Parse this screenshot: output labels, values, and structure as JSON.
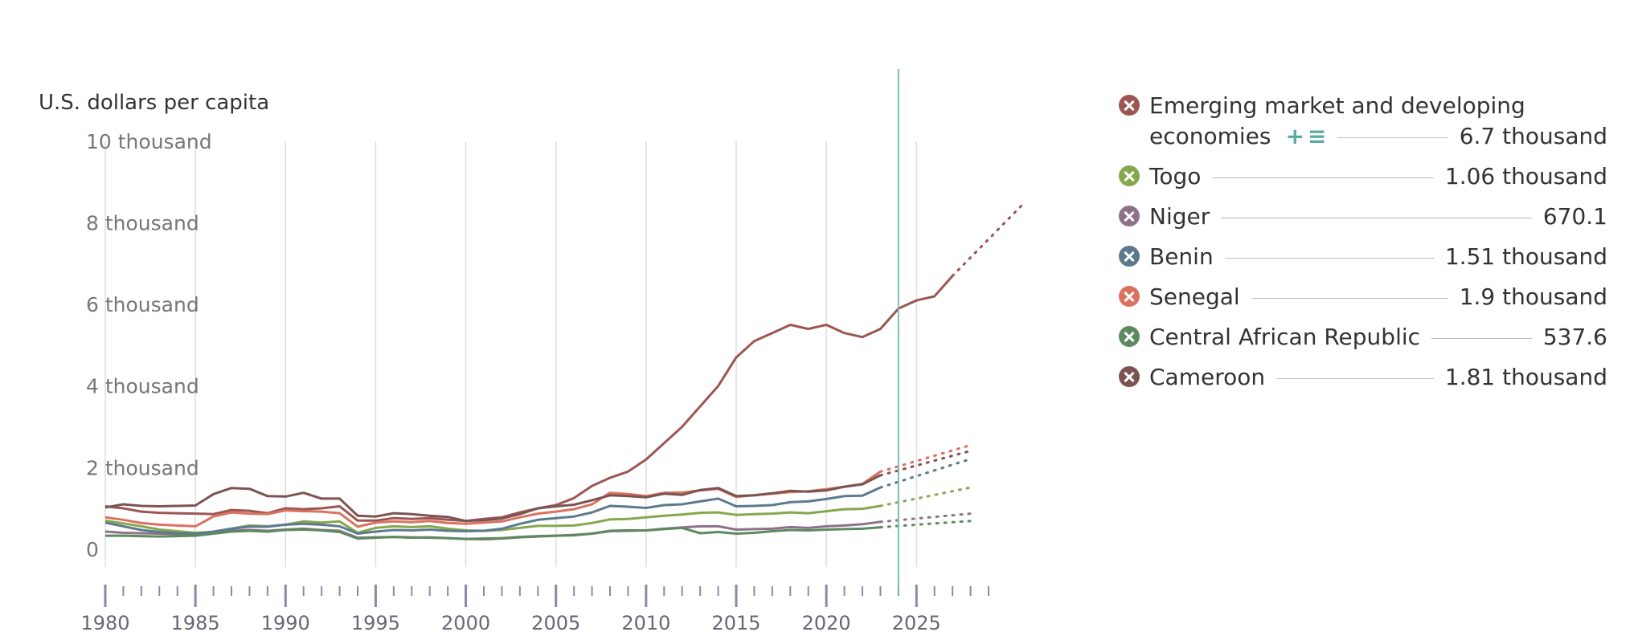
{
  "chart_data": {
    "type": "line",
    "ylabel": "U.S. dollars per capita",
    "y_ticks": [
      {
        "value": 0,
        "label": "0"
      },
      {
        "value": 2000,
        "label": "2 thousand"
      },
      {
        "value": 4000,
        "label": "4 thousand"
      },
      {
        "value": 6000,
        "label": "6 thousand"
      },
      {
        "value": 8000,
        "label": "8 thousand"
      },
      {
        "value": 10000,
        "label": "10 thousand"
      }
    ],
    "x_ticks": [
      "1980",
      "1985",
      "1990",
      "1995",
      "2000",
      "2005",
      "2010",
      "2015",
      "2020",
      "2025"
    ],
    "xlim": [
      1980,
      2029
    ],
    "ylim": [
      -1500,
      10000
    ],
    "current_year": 2024,
    "grid": "vertical",
    "legend_position": "right",
    "series": [
      {
        "name": "Emerging market and developing economies",
        "value_label": "6.7 thousand",
        "color": "#9c5652",
        "values": [
          1050,
          1000,
          920,
          890,
          880,
          870,
          860,
          960,
          940,
          880,
          1000,
          980,
          1000,
          1050,
          700,
          700,
          760,
          740,
          760,
          720,
          690,
          740,
          780,
          900,
          1000,
          1080,
          1250,
          1550,
          1750,
          1900,
          2200,
          2600,
          3000,
          3500,
          4000,
          4700,
          5100,
          5300,
          5500,
          5400,
          5500,
          5300,
          5200,
          5400,
          5900,
          6100,
          6200,
          6700
        ],
        "forecast": [
          6700,
          7150,
          7600,
          8050,
          8500
        ],
        "x_start": 1980
      },
      {
        "name": "Togo",
        "value_label": "1.06 thousand",
        "color": "#86a74d",
        "values": [
          700,
          630,
          560,
          480,
          440,
          400,
          420,
          500,
          580,
          560,
          600,
          680,
          650,
          680,
          400,
          520,
          560,
          540,
          560,
          500,
          460,
          450,
          470,
          520,
          570,
          570,
          580,
          640,
          730,
          740,
          780,
          820,
          850,
          890,
          900,
          840,
          860,
          870,
          900,
          880,
          930,
          980,
          990,
          1060
        ],
        "forecast": [
          1060,
          1150,
          1240,
          1330,
          1420,
          1510
        ],
        "x_start": 1980
      },
      {
        "name": "Niger",
        "value_label": "670.1",
        "color": "#8e7189",
        "values": [
          430,
          400,
          390,
          380,
          370,
          360,
          400,
          450,
          470,
          450,
          480,
          500,
          470,
          450,
          280,
          290,
          300,
          290,
          280,
          270,
          250,
          240,
          260,
          290,
          310,
          330,
          350,
          380,
          440,
          450,
          460,
          500,
          530,
          560,
          560,
          480,
          490,
          500,
          540,
          520,
          560,
          580,
          610,
          670
        ],
        "forecast": [
          670,
          710,
          750,
          790,
          830,
          870
        ],
        "x_start": 1980
      },
      {
        "name": "Benin",
        "value_label": "1.51 thousand",
        "color": "#5b7a8e",
        "values": [
          650,
          560,
          470,
          420,
          390,
          380,
          430,
          500,
          550,
          550,
          600,
          620,
          600,
          560,
          380,
          430,
          470,
          460,
          480,
          450,
          440,
          450,
          500,
          620,
          720,
          760,
          800,
          900,
          1060,
          1040,
          1010,
          1080,
          1100,
          1170,
          1240,
          1050,
          1060,
          1080,
          1150,
          1170,
          1230,
          1300,
          1310,
          1510
        ],
        "forecast": [
          1510,
          1650,
          1790,
          1930,
          2070,
          2210
        ],
        "x_start": 1980
      },
      {
        "name": "Senegal",
        "value_label": "1.9 thousand",
        "color": "#d9725f",
        "values": [
          780,
          720,
          640,
          600,
          580,
          560,
          800,
          900,
          870,
          860,
          950,
          930,
          920,
          880,
          550,
          650,
          680,
          660,
          690,
          640,
          620,
          650,
          680,
          780,
          870,
          920,
          980,
          1100,
          1380,
          1350,
          1300,
          1380,
          1390,
          1440,
          1480,
          1280,
          1320,
          1360,
          1400,
          1420,
          1470,
          1530,
          1600,
          1900
        ],
        "forecast": [
          1900,
          2030,
          2160,
          2290,
          2420,
          2550
        ],
        "x_start": 1980
      },
      {
        "name": "Central African Republic",
        "value_label": "537.6",
        "color": "#5c8a5e",
        "values": [
          330,
          330,
          320,
          310,
          320,
          330,
          380,
          430,
          450,
          430,
          470,
          480,
          460,
          420,
          260,
          280,
          300,
          280,
          290,
          270,
          250,
          260,
          270,
          300,
          320,
          330,
          340,
          380,
          450,
          460,
          460,
          490,
          520,
          390,
          420,
          380,
          400,
          440,
          470,
          460,
          480,
          490,
          500,
          537
        ],
        "forecast": [
          537,
          570,
          600,
          630,
          660,
          690
        ],
        "x_start": 1980
      },
      {
        "name": "Cameroon",
        "value_label": "1.81 thousand",
        "color": "#7b5452",
        "values": [
          1020,
          1100,
          1060,
          1050,
          1060,
          1070,
          1350,
          1500,
          1480,
          1300,
          1290,
          1380,
          1240,
          1240,
          820,
          800,
          880,
          860,
          820,
          790,
          690,
          710,
          750,
          860,
          1000,
          1050,
          1090,
          1200,
          1320,
          1300,
          1270,
          1360,
          1330,
          1450,
          1500,
          1300,
          1320,
          1370,
          1430,
          1410,
          1440,
          1530,
          1590,
          1810
        ],
        "forecast": [
          1810,
          1930,
          2050,
          2170,
          2290,
          2410
        ],
        "x_start": 1980
      }
    ]
  },
  "legend": {
    "first_line": "Emerging market and developing",
    "second_line": "economies",
    "tools_icons": [
      "plus-icon",
      "list-icon"
    ]
  }
}
